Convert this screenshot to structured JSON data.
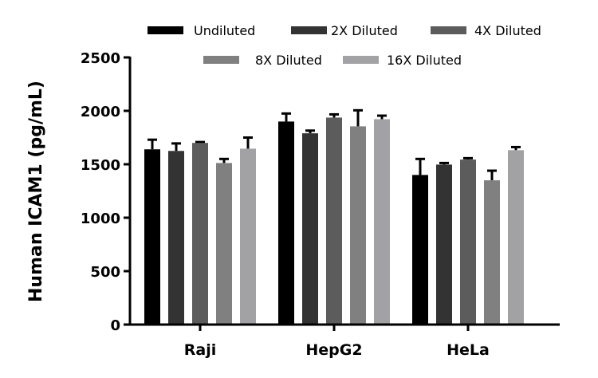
{
  "chart_data": {
    "type": "bar",
    "title": "",
    "xlabel": "",
    "ylabel": "Human ICAM1 (pg/mL)",
    "ylim": [
      0,
      2500
    ],
    "yticks": [
      "0",
      "500",
      "1000",
      "1500",
      "2000",
      "2500"
    ],
    "categories": [
      "Raji",
      "HepG2",
      "HeLa"
    ],
    "legend_position": "top",
    "grid": false,
    "series": [
      {
        "name": "Undiluted",
        "color": "#000000",
        "values": [
          1640,
          1900,
          1400
        ],
        "errors": [
          90,
          75,
          150
        ]
      },
      {
        "name": "2X Diluted",
        "color": "#333333",
        "values": [
          1625,
          1790,
          1497
        ],
        "errors": [
          70,
          25,
          15
        ]
      },
      {
        "name": "4X Diluted",
        "color": "#5c5c5c",
        "values": [
          1700,
          1937,
          1544
        ],
        "errors": [
          8,
          30,
          13
        ]
      },
      {
        "name": "8X Diluted",
        "color": "#808080",
        "values": [
          1512,
          1855,
          1350
        ],
        "errors": [
          38,
          150,
          90
        ]
      },
      {
        "name": "16X Diluted",
        "color": "#a2a2a5",
        "values": [
          1646,
          1922,
          1632
        ],
        "errors": [
          104,
          33,
          29
        ]
      }
    ]
  }
}
